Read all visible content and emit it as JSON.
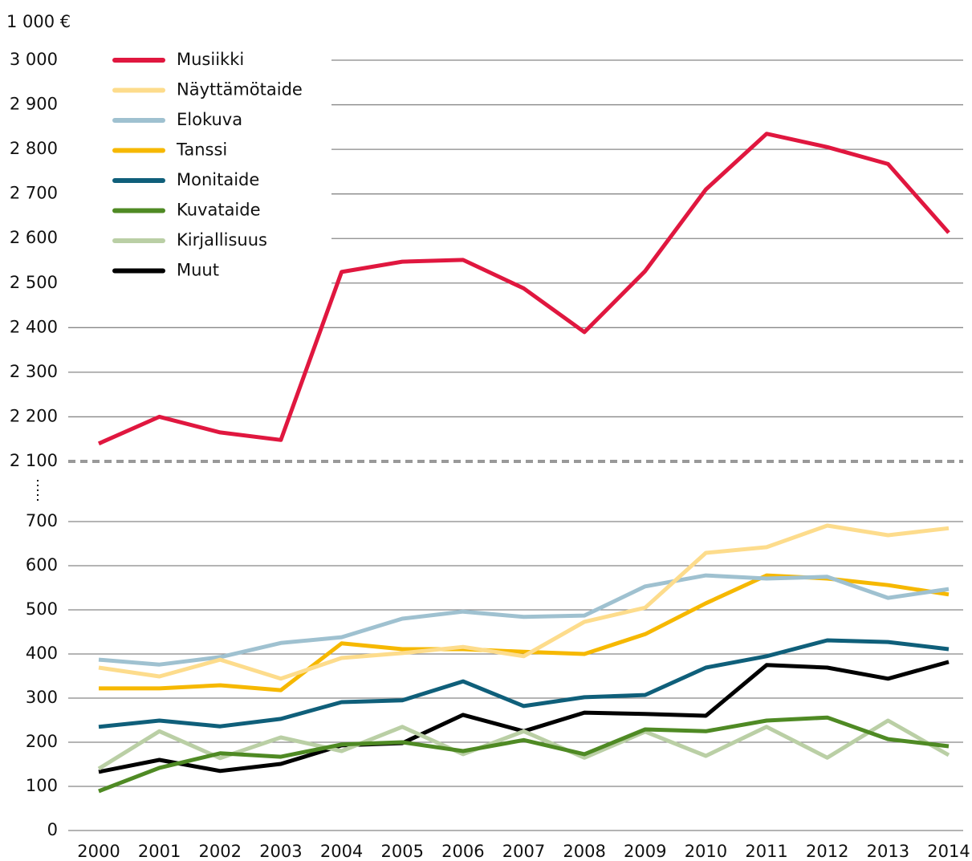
{
  "chart_data": {
    "type": "line",
    "y_unit_label": "1 000 €",
    "categories": [
      "2000",
      "2001",
      "2002",
      "2003",
      "2004",
      "2005",
      "2006",
      "2007",
      "2008",
      "2009",
      "2010",
      "2011",
      "2012",
      "2013",
      "2014"
    ],
    "ylim": [
      0,
      3000
    ],
    "axis_break": [
      700,
      2100
    ],
    "yticks": [
      0,
      100,
      200,
      300,
      400,
      500,
      600,
      700,
      {
        "value": 2100,
        "label": "2 100"
      },
      {
        "value": 2200,
        "label": "2 200"
      },
      {
        "value": 2300,
        "label": "2 300"
      },
      {
        "value": 2400,
        "label": "2 400"
      },
      {
        "value": 2500,
        "label": "2 500"
      },
      {
        "value": 2600,
        "label": "2 600"
      },
      {
        "value": 2700,
        "label": "2 700"
      },
      {
        "value": 2800,
        "label": "2 800"
      },
      {
        "value": 2900,
        "label": "2 900"
      },
      {
        "value": 3000,
        "label": "3 000"
      }
    ],
    "grid": true,
    "legend": "upper left",
    "series": [
      {
        "name": "Musiikki",
        "color": "#e0173f",
        "values": [
          2140,
          2200,
          2165,
          2148,
          2525,
          2548,
          2552,
          2488,
          2390,
          2527,
          2710,
          2835,
          2805,
          2767,
          2613
        ]
      },
      {
        "name": "Näyttämötaide",
        "color": "#fddc8c",
        "values": [
          369,
          349,
          387,
          344,
          391,
          402,
          416,
          395,
          473,
          505,
          629,
          642,
          691,
          669,
          685
        ]
      },
      {
        "name": "Elokuva",
        "color": "#9fc1d0",
        "values": [
          387,
          376,
          393,
          425,
          438,
          480,
          496,
          484,
          487,
          553,
          578,
          571,
          575,
          527,
          547
        ]
      },
      {
        "name": "Tanssi",
        "color": "#f6b800",
        "values": [
          322,
          322,
          329,
          318,
          424,
          411,
          411,
          405,
          400,
          445,
          515,
          578,
          571,
          556,
          535
        ]
      },
      {
        "name": "Monitaide",
        "color": "#0f5f7a",
        "values": [
          235,
          249,
          236,
          253,
          291,
          295,
          338,
          282,
          302,
          307,
          369,
          395,
          431,
          427,
          411
        ]
      },
      {
        "name": "Kuvataide",
        "color": "#4f8a24",
        "values": [
          89,
          142,
          175,
          167,
          195,
          200,
          180,
          205,
          173,
          229,
          225,
          249,
          256,
          207,
          191
        ]
      },
      {
        "name": "Kirjallisuus",
        "color": "#bacfa5",
        "values": [
          140,
          225,
          164,
          211,
          180,
          235,
          173,
          225,
          165,
          224,
          169,
          235,
          165,
          249,
          171
        ]
      },
      {
        "name": "Muut",
        "color": "#000000",
        "values": [
          133,
          160,
          135,
          151,
          193,
          198,
          262,
          225,
          267,
          264,
          260,
          375,
          369,
          344,
          382
        ]
      }
    ]
  }
}
